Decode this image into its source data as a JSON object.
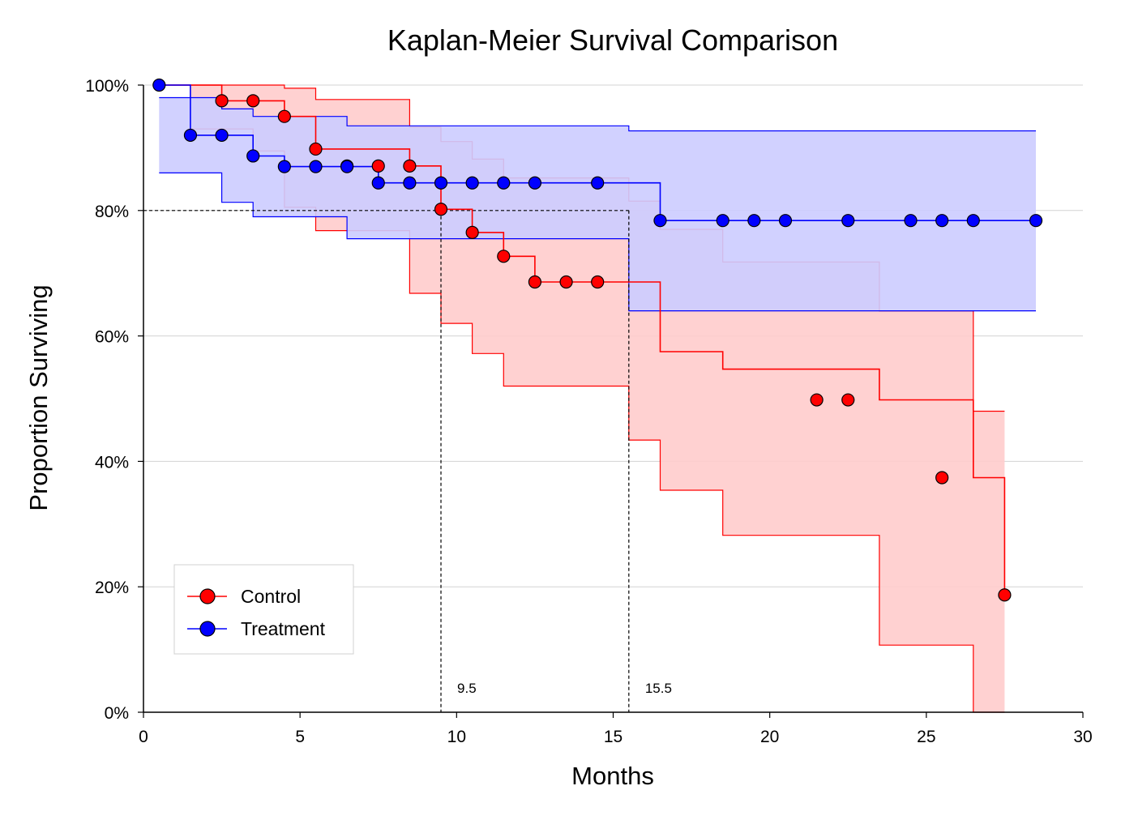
{
  "chart_data": {
    "type": "line",
    "subtype": "kaplan-meier step curves with confidence bands",
    "title": "Kaplan-Meier Survival Comparison",
    "xlabel": "Months",
    "ylabel": "Proportion Surviving",
    "xlim": [
      0,
      30
    ],
    "ylim": [
      0,
      1
    ],
    "xticks": [
      0,
      5,
      10,
      15,
      20,
      25,
      30
    ],
    "yticks": [
      0,
      0.2,
      0.4,
      0.6,
      0.8,
      1.0
    ],
    "ytick_labels": [
      "0%",
      "20%",
      "40%",
      "60%",
      "80%",
      "100%"
    ],
    "grid": "horizontal",
    "legend_position": "bottom-left",
    "reference_line_y": 0.8,
    "annotations": [
      {
        "x": 9.5,
        "label": "9.5"
      },
      {
        "x": 15.5,
        "label": "15.5"
      }
    ],
    "series": [
      {
        "name": "Control",
        "color": "#ff0000",
        "band_color": "#ffcccc",
        "steps": [
          [
            0.5,
            1.0
          ],
          [
            2.5,
            0.975
          ],
          [
            4.5,
            0.95
          ],
          [
            5.5,
            0.898
          ],
          [
            8.5,
            0.871
          ],
          [
            9.5,
            0.802
          ],
          [
            10.5,
            0.765
          ],
          [
            11.5,
            0.727
          ],
          [
            12.5,
            0.686
          ],
          [
            15.5,
            0.686
          ],
          [
            16.5,
            0.575
          ],
          [
            18.5,
            0.547
          ],
          [
            23.5,
            0.498
          ],
          [
            26.5,
            0.374
          ],
          [
            27.5,
            0.187
          ]
        ],
        "lower": [
          [
            0.5,
            1.0
          ],
          [
            1.5,
            0.93
          ],
          [
            3.5,
            0.895
          ],
          [
            4.5,
            0.805
          ],
          [
            5.5,
            0.768
          ],
          [
            8.5,
            0.668
          ],
          [
            9.5,
            0.62
          ],
          [
            10.5,
            0.572
          ],
          [
            11.5,
            0.52
          ],
          [
            15.5,
            0.434
          ],
          [
            16.5,
            0.354
          ],
          [
            18.5,
            0.282
          ],
          [
            23.5,
            0.107
          ],
          [
            26.5,
            0.0
          ],
          [
            27.5,
            0.0
          ]
        ],
        "upper": [
          [
            0.5,
            1.0
          ],
          [
            4.5,
            0.995
          ],
          [
            5.5,
            0.977
          ],
          [
            8.5,
            0.933
          ],
          [
            9.5,
            0.91
          ],
          [
            10.5,
            0.882
          ],
          [
            11.5,
            0.852
          ],
          [
            15.5,
            0.815
          ],
          [
            16.5,
            0.77
          ],
          [
            18.5,
            0.718
          ],
          [
            23.5,
            0.64
          ],
          [
            26.5,
            0.48
          ],
          [
            27.5,
            0.48
          ]
        ],
        "markers": [
          [
            2.5,
            0.975
          ],
          [
            3.5,
            0.975
          ],
          [
            4.5,
            0.95
          ],
          [
            5.5,
            0.898
          ],
          [
            6.5,
            0.871
          ],
          [
            7.5,
            0.871
          ],
          [
            8.5,
            0.871
          ],
          [
            9.5,
            0.802
          ],
          [
            10.5,
            0.765
          ],
          [
            11.5,
            0.727
          ],
          [
            12.5,
            0.686
          ],
          [
            13.5,
            0.686
          ],
          [
            14.5,
            0.686
          ],
          [
            21.5,
            0.498
          ],
          [
            22.5,
            0.498
          ],
          [
            25.5,
            0.374
          ],
          [
            27.5,
            0.187
          ]
        ]
      },
      {
        "name": "Treatment",
        "color": "#0000ff",
        "band_color": "#ccccff",
        "steps": [
          [
            0.5,
            1.0
          ],
          [
            1.5,
            0.92
          ],
          [
            3.5,
            0.887
          ],
          [
            4.5,
            0.87
          ],
          [
            7.5,
            0.844
          ],
          [
            15.5,
            0.844
          ],
          [
            16.5,
            0.784
          ],
          [
            28.5,
            0.784
          ]
        ],
        "lower": [
          [
            0.5,
            0.86
          ],
          [
            2.5,
            0.813
          ],
          [
            3.5,
            0.79
          ],
          [
            6.5,
            0.755
          ],
          [
            15.5,
            0.64
          ],
          [
            28.5,
            0.64
          ]
        ],
        "upper": [
          [
            0.5,
            0.98
          ],
          [
            2.5,
            0.962
          ],
          [
            3.5,
            0.95
          ],
          [
            6.5,
            0.935
          ],
          [
            15.5,
            0.927
          ],
          [
            28.5,
            0.927
          ]
        ],
        "markers": [
          [
            0.5,
            1.0
          ],
          [
            1.5,
            0.92
          ],
          [
            2.5,
            0.92
          ],
          [
            3.5,
            0.887
          ],
          [
            4.5,
            0.87
          ],
          [
            5.5,
            0.87
          ],
          [
            6.5,
            0.87
          ],
          [
            7.5,
            0.844
          ],
          [
            8.5,
            0.844
          ],
          [
            9.5,
            0.844
          ],
          [
            10.5,
            0.844
          ],
          [
            11.5,
            0.844
          ],
          [
            12.5,
            0.844
          ],
          [
            14.5,
            0.844
          ],
          [
            16.5,
            0.784
          ],
          [
            18.5,
            0.784
          ],
          [
            19.5,
            0.784
          ],
          [
            20.5,
            0.784
          ],
          [
            22.5,
            0.784
          ],
          [
            24.5,
            0.784
          ],
          [
            25.5,
            0.784
          ],
          [
            26.5,
            0.784
          ],
          [
            28.5,
            0.784
          ]
        ]
      }
    ]
  }
}
